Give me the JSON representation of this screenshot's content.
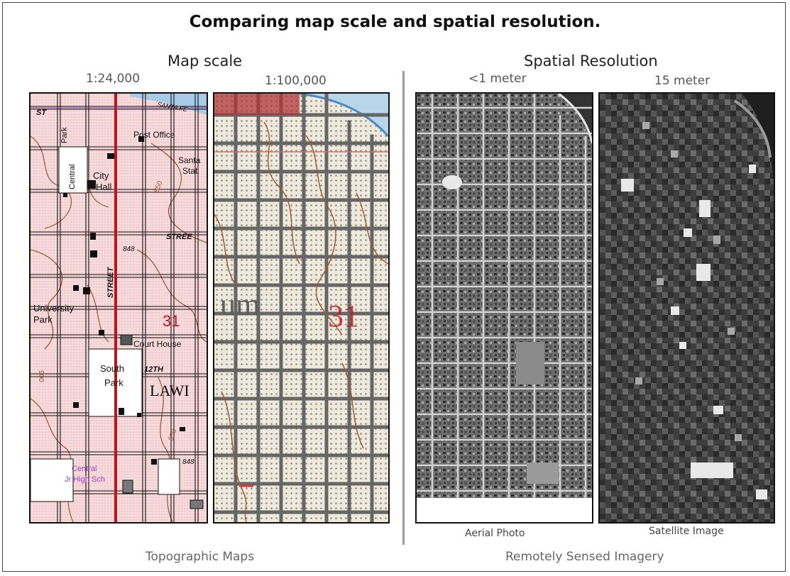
{
  "figure": {
    "title": "Comparing map scale and spatial resolution.",
    "left_section": {
      "heading": "Map scale",
      "caption": "Topographic Maps",
      "panels": [
        {
          "scale_label": "1:24,000"
        },
        {
          "scale_label": "1:100,000"
        }
      ]
    },
    "right_section": {
      "heading": "Spatial Resolution",
      "caption": "Remotely Sensed Imagery",
      "panels": [
        {
          "resolution_label": "<1 meter",
          "caption": "Aerial Photo"
        },
        {
          "resolution_label": "15 meter",
          "caption": "Satellite Image"
        }
      ]
    }
  },
  "topo_24k_labels": {
    "st": "ST",
    "central_park_1": "Central",
    "central_park_2": "Park",
    "post_office": "Post Office",
    "santa": "Santa",
    "stat": "Stat",
    "city": "City",
    "hall": "Hall",
    "street_top": "STREE",
    "elev_848_a": "848",
    "street_vertical": "STREET",
    "university": "University",
    "park": "Park",
    "section_31": "31",
    "court_house": "Court House",
    "south": "South",
    "park2": "Park",
    "twelfth": "12TH",
    "lawrence": "LAWI",
    "contour_850_a": "850",
    "contour_850_b": "850",
    "contour_900": "900",
    "elev_848_b": "848",
    "central": "Central",
    "high_sch": "Jr High Sch",
    "santa_fe": "SANTA FE"
  },
  "topo_100k_labels": {
    "um": "um",
    "section_31": "31"
  },
  "colors": {
    "topo_background": "#f7dfe0",
    "street_black": "#111111",
    "road_red": "#c0141c",
    "contour_brown": "#a25a32",
    "water_blue": "#4a8ccc",
    "divider": "#9a9a9a"
  }
}
